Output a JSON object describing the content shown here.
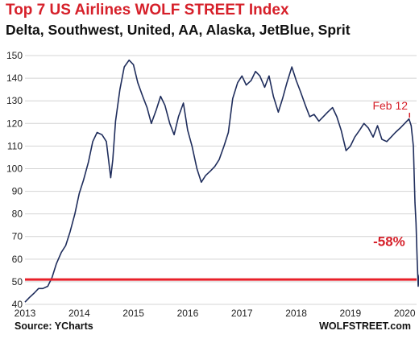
{
  "chart_data": {
    "type": "line",
    "title": "Top 7 US Airlines WOLF STREET Index",
    "subtitle": "Delta, Southwest, United, AA, Alaska, JetBlue, Sprit",
    "xlabel": "",
    "ylabel": "",
    "xlim": [
      2013.0,
      2020.22
    ],
    "ylim": [
      40,
      155
    ],
    "y_ticks": [
      40,
      50,
      60,
      70,
      80,
      90,
      100,
      110,
      120,
      130,
      140,
      150
    ],
    "x_ticks": [
      2013,
      2014,
      2015,
      2016,
      2017,
      2018,
      2019,
      2020
    ],
    "grid": "horizontal",
    "series": [
      {
        "color": "#1f2d5c",
        "points": [
          [
            2013.0,
            41
          ],
          [
            2013.08,
            43
          ],
          [
            2013.17,
            45
          ],
          [
            2013.25,
            47
          ],
          [
            2013.33,
            47
          ],
          [
            2013.42,
            48
          ],
          [
            2013.5,
            52
          ],
          [
            2013.58,
            58
          ],
          [
            2013.67,
            63
          ],
          [
            2013.75,
            66
          ],
          [
            2013.83,
            72
          ],
          [
            2013.92,
            80
          ],
          [
            2014.0,
            89
          ],
          [
            2014.08,
            95
          ],
          [
            2014.17,
            103
          ],
          [
            2014.25,
            112
          ],
          [
            2014.33,
            116
          ],
          [
            2014.42,
            115
          ],
          [
            2014.5,
            112
          ],
          [
            2014.58,
            96
          ],
          [
            2014.62,
            104
          ],
          [
            2014.67,
            121
          ],
          [
            2014.75,
            135
          ],
          [
            2014.83,
            145
          ],
          [
            2014.92,
            148
          ],
          [
            2015.0,
            146
          ],
          [
            2015.08,
            138
          ],
          [
            2015.17,
            132
          ],
          [
            2015.25,
            127
          ],
          [
            2015.33,
            120
          ],
          [
            2015.42,
            126
          ],
          [
            2015.5,
            132
          ],
          [
            2015.58,
            128
          ],
          [
            2015.67,
            120
          ],
          [
            2015.75,
            115
          ],
          [
            2015.83,
            123
          ],
          [
            2015.92,
            129
          ],
          [
            2016.0,
            117
          ],
          [
            2016.08,
            110
          ],
          [
            2016.17,
            100
          ],
          [
            2016.25,
            94
          ],
          [
            2016.33,
            97
          ],
          [
            2016.42,
            99
          ],
          [
            2016.5,
            101
          ],
          [
            2016.58,
            104
          ],
          [
            2016.67,
            110
          ],
          [
            2016.75,
            116
          ],
          [
            2016.83,
            131
          ],
          [
            2016.92,
            138
          ],
          [
            2017.0,
            141
          ],
          [
            2017.08,
            137
          ],
          [
            2017.17,
            139
          ],
          [
            2017.25,
            143
          ],
          [
            2017.33,
            141
          ],
          [
            2017.42,
            136
          ],
          [
            2017.5,
            141
          ],
          [
            2017.58,
            132
          ],
          [
            2017.67,
            125
          ],
          [
            2017.75,
            131
          ],
          [
            2017.83,
            138
          ],
          [
            2017.92,
            145
          ],
          [
            2018.0,
            139
          ],
          [
            2018.08,
            134
          ],
          [
            2018.17,
            128
          ],
          [
            2018.25,
            123
          ],
          [
            2018.33,
            124
          ],
          [
            2018.42,
            121
          ],
          [
            2018.5,
            123
          ],
          [
            2018.58,
            125
          ],
          [
            2018.67,
            127
          ],
          [
            2018.75,
            123
          ],
          [
            2018.83,
            117
          ],
          [
            2018.92,
            108
          ],
          [
            2019.0,
            110
          ],
          [
            2019.08,
            114
          ],
          [
            2019.17,
            117
          ],
          [
            2019.25,
            120
          ],
          [
            2019.33,
            118
          ],
          [
            2019.42,
            114
          ],
          [
            2019.5,
            119
          ],
          [
            2019.58,
            113
          ],
          [
            2019.67,
            112
          ],
          [
            2019.75,
            114
          ],
          [
            2019.83,
            116
          ],
          [
            2019.92,
            118
          ],
          [
            2020.0,
            120
          ],
          [
            2020.08,
            122
          ],
          [
            2020.12,
            119
          ],
          [
            2020.16,
            110
          ],
          [
            2020.19,
            85
          ],
          [
            2020.21,
            76
          ],
          [
            2020.23,
            60
          ],
          [
            2020.25,
            48
          ],
          [
            2020.27,
            53
          ],
          [
            2020.3,
            50
          ],
          [
            2020.32,
            52
          ],
          [
            2020.33,
            50
          ]
        ]
      }
    ],
    "reference_line": {
      "y": 51,
      "color": "#e8202a"
    },
    "annotations": [
      {
        "text": "Feb 12",
        "x": 2020.12,
        "y": 124,
        "color": "#d6202a"
      },
      {
        "text": "-58%",
        "x": 2020.16,
        "y": 68,
        "color": "#d6202a"
      }
    ]
  },
  "footer": {
    "source": "Source: YCharts",
    "brand": "WOLFSTREET.com"
  }
}
